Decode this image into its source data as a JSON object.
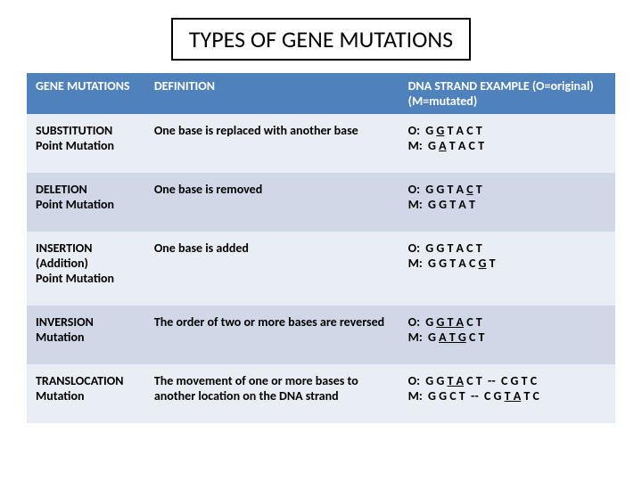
{
  "title": "TYPES OF GENE MUTATIONS",
  "columns": {
    "c1": "GENE MUTATIONS",
    "c2": "DEFINITION",
    "c3": "DNA STRAND EXAMPLE (O=original) (M=mutated)"
  },
  "rows": [
    {
      "type": "SUBSTITUTION\nPoint Mutation",
      "def": "One base is replaced with another base",
      "dna_html": "O:  G <span class=\"u\">G</span> T A C T<br>M:  G <span class=\"u\">A</span> T A C T"
    },
    {
      "type": "DELETION\nPoint Mutation",
      "def": "One base is removed",
      "dna_html": "O:  G G T A <span class=\"u\">C</span> T<br>M:  G G T A T"
    },
    {
      "type": "INSERTION (Addition)\nPoint Mutation",
      "def": "One base is added",
      "dna_html": "O:  G G T A C T<br>M:  G G T A C <span class=\"u\">G</span> T"
    },
    {
      "type": "INVERSION\nMutation",
      "def": "The order of two or more bases are reversed",
      "dna_html": "O:  G <span class=\"u\">G T A</span> C T<br>M:  G <span class=\"u\">A T G</span> C T"
    },
    {
      "type": "TRANSLOCATION\nMutation",
      "def": "The movement of one or more bases to another location on the DNA strand",
      "dna_html": "O:  G G <span class=\"u\">T A</span> C T  --  C G T C<br>M:  G G C T  --  C G <span class=\"u\">T A</span> T C"
    }
  ],
  "colors": {
    "header_bg": "#4f81bd",
    "header_text": "#ffffff",
    "row_odd": "#e9edf4",
    "row_even": "#d0d8e8"
  }
}
